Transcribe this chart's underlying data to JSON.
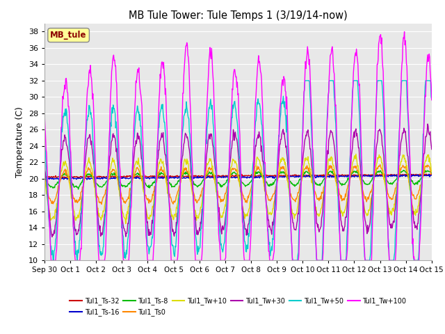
{
  "title": "MB Tule Tower: Tule Temps 1 (3/19/14-now)",
  "ylabel": "Temperature (C)",
  "ylim": [
    10,
    39
  ],
  "yticks": [
    10,
    12,
    14,
    16,
    18,
    20,
    22,
    24,
    26,
    28,
    30,
    32,
    34,
    36,
    38
  ],
  "xlabel_dates": [
    "Sep 30",
    "Oct 1",
    "Oct 2",
    "Oct 3",
    "Oct 4",
    "Oct 5",
    "Oct 6",
    "Oct 7",
    "Oct 8",
    "Oct 9",
    "Oct 10",
    "Oct 11",
    "Oct 12",
    "Oct 13",
    "Oct 14",
    "Oct 15"
  ],
  "n_days": 16,
  "series": [
    {
      "name": "Tul1_Ts-32",
      "color": "#cc0000",
      "lw": 1.0,
      "amp": 0.3,
      "base": 20.2,
      "phase": 0.0,
      "noise": 0.05
    },
    {
      "name": "Tul1_Ts-16",
      "color": "#0000cc",
      "lw": 1.0,
      "amp": 0.5,
      "base": 20.0,
      "phase": 0.1,
      "noise": 0.06
    },
    {
      "name": "Tul1_Ts-8",
      "color": "#00bb00",
      "lw": 1.0,
      "amp": 0.8,
      "base": 19.7,
      "phase": 0.15,
      "noise": 0.08
    },
    {
      "name": "Tul1_Ts0",
      "color": "#ff8800",
      "lw": 1.0,
      "amp": 2.0,
      "base": 19.0,
      "phase": 0.2,
      "noise": 0.15
    },
    {
      "name": "Tul1_Tw+10",
      "color": "#dddd00",
      "lw": 1.0,
      "amp": 3.5,
      "base": 18.5,
      "phase": 0.25,
      "noise": 0.2
    },
    {
      "name": "Tul1_Tw+30",
      "color": "#aa00aa",
      "lw": 1.0,
      "amp": 6.0,
      "base": 19.0,
      "phase": 0.3,
      "noise": 0.3
    },
    {
      "name": "Tul1_Tw+50",
      "color": "#00cccc",
      "lw": 1.0,
      "amp": 9.0,
      "base": 19.5,
      "phase": 0.35,
      "noise": 0.4
    },
    {
      "name": "Tul1_Tw+100",
      "color": "#ff00ff",
      "lw": 1.0,
      "amp": 16.0,
      "base": 20.0,
      "phase": 0.4,
      "noise": 0.5
    }
  ],
  "annotation_box": "MB_tule",
  "annotation_color": "#8b0000",
  "annotation_bg": "#ffff99",
  "background_color": "#ffffff",
  "plot_bg": "#e8e8e8",
  "grid_color": "#ffffff"
}
